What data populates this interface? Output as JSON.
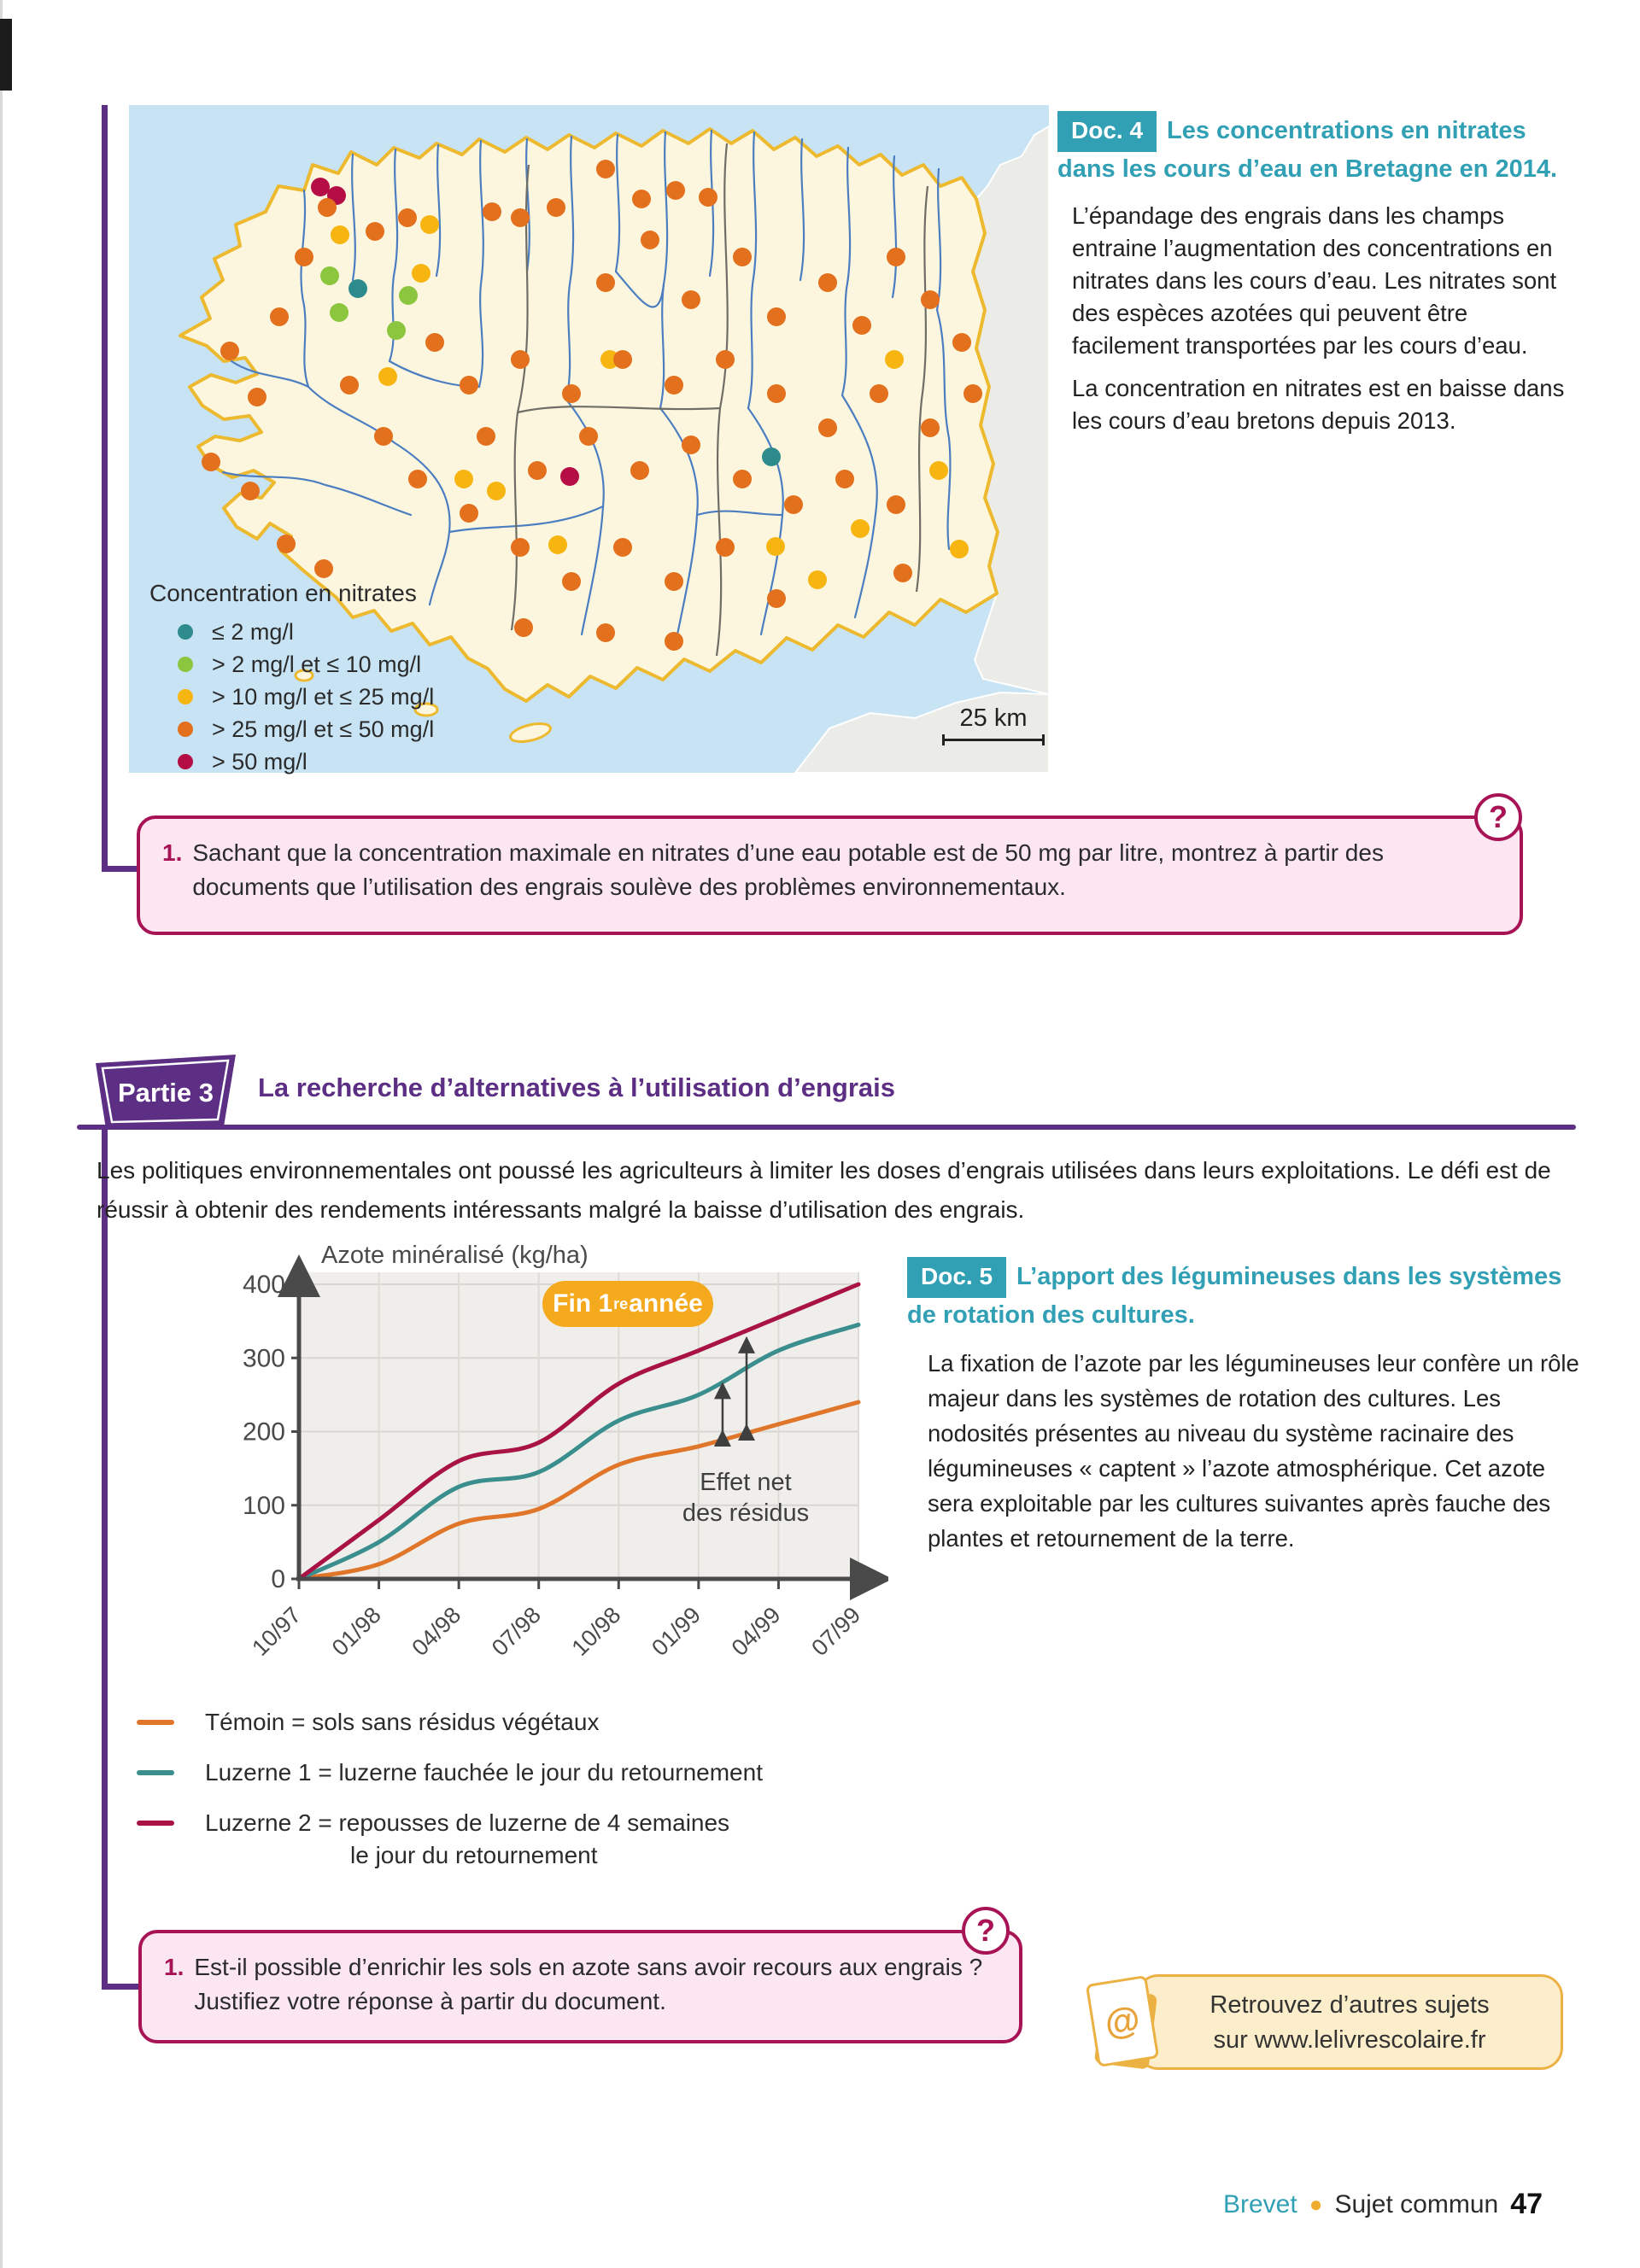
{
  "doc4": {
    "badge": "Doc. 4",
    "title": "Les concentrations en nitrates dans les cours d’eau en Bretagne en 2014.",
    "para1": "L’épandage des engrais dans les champs entraine l’augmentation des concentrations en nitrates dans les cours d’eau. Les nitrates sont des espèces azotées qui peuvent être facilement transportées par les cours d’eau.",
    "para2": "La concentration en nitrates est en baisse dans les cours d’eau bretons depuis 2013."
  },
  "map": {
    "legend_title": "Concentration en nitrates",
    "legend": [
      {
        "color": "#2e8b8b",
        "label": "≤ 2 mg/l"
      },
      {
        "color": "#8cc63e",
        "label": "> 2 mg/l et ≤ 10 mg/l"
      },
      {
        "color": "#f6b511",
        "label": "> 10 mg/l et ≤ 25 mg/l"
      },
      {
        "color": "#e2701d",
        "label": "> 25 mg/l et ≤ 50 mg/l"
      },
      {
        "color": "#b50d45",
        "label": "> 50 mg/l"
      }
    ],
    "scale_label": "25 km",
    "dot_colors": {
      "t": "#2e8b8b",
      "g": "#8cc63e",
      "y": "#f6b511",
      "o": "#e2701d",
      "r": "#b50d45"
    },
    "dots": [
      [
        224,
        96,
        "r"
      ],
      [
        243,
        106,
        "r"
      ],
      [
        516,
        435,
        "r"
      ],
      [
        268,
        215,
        "t"
      ],
      [
        752,
        412,
        "t"
      ],
      [
        235,
        200,
        "g"
      ],
      [
        246,
        243,
        "g"
      ],
      [
        313,
        264,
        "g"
      ],
      [
        327,
        223,
        "g"
      ],
      [
        247,
        152,
        "y"
      ],
      [
        342,
        197,
        "y"
      ],
      [
        303,
        318,
        "y"
      ],
      [
        392,
        438,
        "y"
      ],
      [
        430,
        452,
        "y"
      ],
      [
        502,
        515,
        "y"
      ],
      [
        563,
        298,
        "y"
      ],
      [
        757,
        517,
        "y"
      ],
      [
        856,
        496,
        "y"
      ],
      [
        948,
        428,
        "y"
      ],
      [
        896,
        298,
        "y"
      ],
      [
        352,
        140,
        "y"
      ],
      [
        806,
        556,
        "y"
      ],
      [
        972,
        520,
        "y"
      ],
      [
        118,
        288,
        "o"
      ],
      [
        150,
        342,
        "o"
      ],
      [
        96,
        418,
        "o"
      ],
      [
        142,
        452,
        "o"
      ],
      [
        184,
        514,
        "o"
      ],
      [
        228,
        543,
        "o"
      ],
      [
        176,
        248,
        "o"
      ],
      [
        205,
        178,
        "o"
      ],
      [
        232,
        120,
        "o"
      ],
      [
        288,
        148,
        "o"
      ],
      [
        326,
        132,
        "o"
      ],
      [
        425,
        125,
        "o"
      ],
      [
        458,
        132,
        "o"
      ],
      [
        500,
        120,
        "o"
      ],
      [
        558,
        75,
        "o"
      ],
      [
        600,
        110,
        "o"
      ],
      [
        640,
        100,
        "o"
      ],
      [
        678,
        108,
        "o"
      ],
      [
        610,
        158,
        "o"
      ],
      [
        558,
        208,
        "o"
      ],
      [
        658,
        228,
        "o"
      ],
      [
        718,
        178,
        "o"
      ],
      [
        758,
        248,
        "o"
      ],
      [
        818,
        208,
        "o"
      ],
      [
        858,
        258,
        "o"
      ],
      [
        898,
        178,
        "o"
      ],
      [
        938,
        228,
        "o"
      ],
      [
        975,
        278,
        "o"
      ],
      [
        988,
        338,
        "o"
      ],
      [
        938,
        378,
        "o"
      ],
      [
        878,
        338,
        "o"
      ],
      [
        818,
        378,
        "o"
      ],
      [
        758,
        338,
        "o"
      ],
      [
        698,
        298,
        "o"
      ],
      [
        638,
        328,
        "o"
      ],
      [
        578,
        298,
        "o"
      ],
      [
        518,
        338,
        "o"
      ],
      [
        458,
        298,
        "o"
      ],
      [
        398,
        328,
        "o"
      ],
      [
        358,
        278,
        "o"
      ],
      [
        418,
        388,
        "o"
      ],
      [
        478,
        428,
        "o"
      ],
      [
        538,
        388,
        "o"
      ],
      [
        598,
        428,
        "o"
      ],
      [
        658,
        398,
        "o"
      ],
      [
        718,
        438,
        "o"
      ],
      [
        778,
        468,
        "o"
      ],
      [
        838,
        438,
        "o"
      ],
      [
        898,
        468,
        "o"
      ],
      [
        698,
        518,
        "o"
      ],
      [
        638,
        558,
        "o"
      ],
      [
        578,
        518,
        "o"
      ],
      [
        518,
        558,
        "o"
      ],
      [
        458,
        518,
        "o"
      ],
      [
        398,
        478,
        "o"
      ],
      [
        338,
        438,
        "o"
      ],
      [
        298,
        388,
        "o"
      ],
      [
        258,
        328,
        "o"
      ],
      [
        558,
        618,
        "o"
      ],
      [
        638,
        628,
        "o"
      ],
      [
        758,
        578,
        "o"
      ],
      [
        462,
        612,
        "o"
      ],
      [
        906,
        548,
        "o"
      ]
    ]
  },
  "question1": {
    "number": "1.",
    "icon": "?",
    "text": "Sachant que la concentration maximale en nitrates d’une eau potable est de 50 mg par litre, montrez à partir des documents que l’utilisation des engrais soulève des problèmes environnementaux."
  },
  "partie3": {
    "banner": "Partie 3",
    "title": "La recherche d’alternatives à l’utilisation d’engrais",
    "intro": "Les politiques environnementales ont poussé les agriculteurs à limiter les doses d’engrais utilisées dans leurs exploitations. Le défi est de réussir à obtenir des rendements intéressants malgré la baisse d’utilisation des engrais."
  },
  "chart_data": {
    "type": "line",
    "title": "Azote minéralisé (kg/ha)",
    "xlabel": "",
    "ylabel": "Azote minéralisé (kg/ha)",
    "x_labels": [
      "10/97",
      "01/98",
      "04/98",
      "07/98",
      "10/98",
      "01/99",
      "04/99",
      "07/99"
    ],
    "y_ticks": [
      0,
      100,
      200,
      300,
      400
    ],
    "ylim": [
      0,
      400
    ],
    "grid": true,
    "legend_position": "below",
    "series": [
      {
        "name": "Témoin",
        "color": "#e0762a",
        "values": [
          0,
          20,
          75,
          95,
          155,
          180,
          210,
          240
        ]
      },
      {
        "name": "Luzerne 1",
        "color": "#3a8e8e",
        "values": [
          0,
          50,
          125,
          145,
          215,
          250,
          310,
          345
        ]
      },
      {
        "name": "Luzerne 2",
        "color": "#a81245",
        "values": [
          0,
          80,
          160,
          185,
          265,
          310,
          355,
          400
        ]
      }
    ],
    "badge": {
      "pre": "Fin 1",
      "sup": "re",
      "post": " année"
    },
    "annotation_lines": [
      "Effet net",
      "des résidus"
    ],
    "arrows": [
      {
        "x": 5.3,
        "from": 185,
        "to": 268
      },
      {
        "x": 5.6,
        "from": 193,
        "to": 330
      }
    ]
  },
  "chart_legend": [
    {
      "color": "#e0762a",
      "label": "Témoin = sols sans résidus végétaux",
      "label2": ""
    },
    {
      "color": "#3a8e8e",
      "label": "Luzerne 1 = luzerne fauchée le jour du retournement",
      "label2": ""
    },
    {
      "color": "#a81245",
      "label": "Luzerne 2 = repousses de luzerne de 4 semaines",
      "label2": "le jour du retournement"
    }
  ],
  "doc5": {
    "badge": "Doc. 5",
    "title": "L’apport des légumineuses dans les systèmes de rotation des cultures.",
    "para1": "La fixation de l’azote par les légumineuses leur confère un rôle majeur dans les systèmes de rotation des cultures. Les nodosités présentes au niveau du système racinaire des légumineuses « captent » l’azote atmosphérique. Cet azote sera exploitable par les cultures suivantes après fauche des plantes et retournement de la terre."
  },
  "question2": {
    "number": "1.",
    "icon": "?",
    "text": "Est-il possible d’enrichir les sols en azote sans avoir recours aux engrais ? Justifiez votre réponse à partir du document."
  },
  "promo": {
    "at": "@",
    "line1": "Retrouvez d’autres sujets",
    "line2": "sur www.lelivrescolaire.fr"
  },
  "footer": {
    "brevet": "Brevet",
    "bullet": "●",
    "section": "Sujet commun",
    "page_number": "47"
  }
}
